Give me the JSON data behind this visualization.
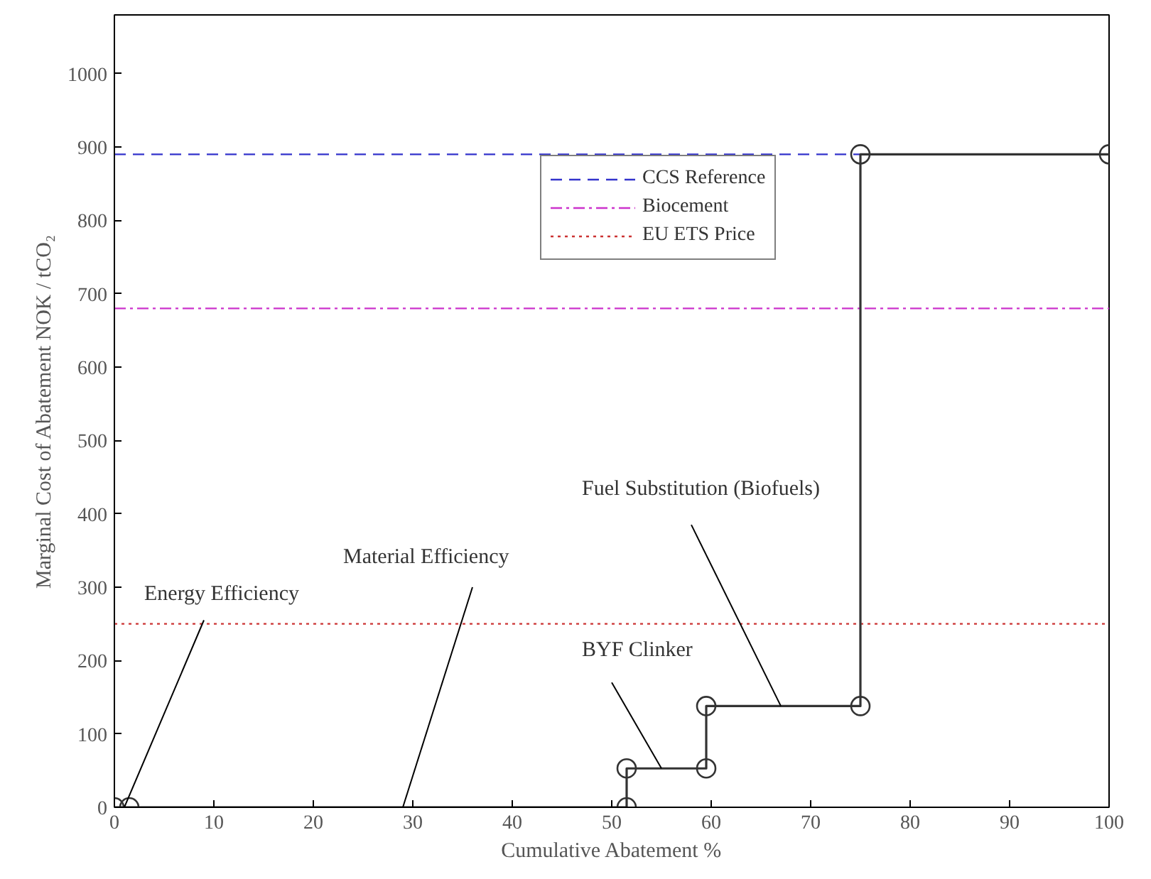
{
  "chart_data": {
    "type": "line",
    "xlabel": "Cumulative Abatement %",
    "ylabel": "Marginal Cost of Abatement NOK / tCO₂",
    "xlim": [
      0,
      100
    ],
    "ylim": [
      0,
      1080
    ],
    "xticks": [
      0,
      10,
      20,
      30,
      40,
      50,
      60,
      70,
      80,
      90,
      100
    ],
    "yticks": [
      0,
      100,
      200,
      300,
      400,
      500,
      600,
      700,
      800,
      900,
      1000
    ],
    "grid": false,
    "marker": "circle",
    "line_style": "solid",
    "legend": "top right",
    "series": [
      {
        "color": "#333333",
        "x": [
          0,
          1.5,
          51.5,
          51.5,
          59.5,
          59.5,
          75,
          75,
          100
        ],
        "values": [
          0,
          0,
          0,
          53,
          53,
          138,
          138,
          890,
          890
        ]
      }
    ],
    "ref_lines": [
      {
        "axis": "y",
        "value": 890,
        "label": "CCS Reference",
        "color": "#3333cc",
        "line_style": "dashed"
      },
      {
        "axis": "y",
        "value": 680,
        "label": "Biocement",
        "color": "#cc33cc",
        "line_style": "dashdot"
      },
      {
        "axis": "y",
        "value": 250,
        "label": "EU ETS Price",
        "color": "#cc3333",
        "line_style": "dotted"
      }
    ],
    "annotations": [
      {
        "text": "Energy Efficiency",
        "x": 1,
        "y": 0
      },
      {
        "text": "Material Efficiency",
        "x": 29,
        "y": 0
      },
      {
        "text": "BYF Clinker",
        "x": 55,
        "y": 53
      },
      {
        "text": "Fuel Substitution (Biofuels)",
        "x": 67,
        "y": 138
      }
    ]
  }
}
